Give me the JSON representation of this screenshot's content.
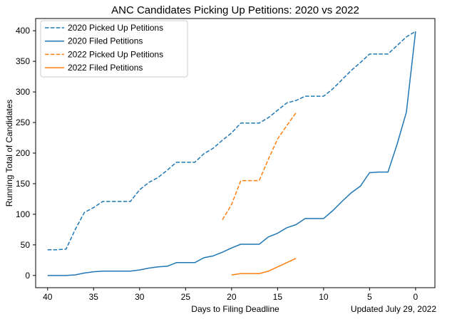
{
  "chart_data": {
    "type": "line",
    "title": "ANC Candidates Picking Up Petitions: 2020 vs 2022",
    "xlabel": "Days to Filing Deadline",
    "ylabel": "Running Total of Candidates",
    "footnote": "Updated July 29, 2022",
    "xlim": [
      41.3,
      -2.1
    ],
    "ylim": [
      -20,
      420
    ],
    "x_reversed": true,
    "x_ticks": [
      40,
      35,
      30,
      25,
      20,
      15,
      10,
      5,
      0
    ],
    "y_ticks": [
      0,
      50,
      100,
      150,
      200,
      250,
      300,
      350,
      400
    ],
    "grid": false,
    "legend": "top-left",
    "series": [
      {
        "name": "2020 Picked Up Petitions",
        "color": "#1f77b4",
        "dash": "dashed",
        "x": [
          40,
          39,
          38,
          37,
          36,
          35,
          34,
          33,
          32,
          31,
          30,
          29,
          28,
          27,
          26,
          25,
          24,
          23,
          22,
          21,
          20,
          19,
          18,
          17,
          16,
          15,
          14,
          13,
          12,
          11,
          10,
          9,
          8,
          7,
          6,
          5,
          4,
          3,
          2,
          1,
          0
        ],
        "y": [
          42,
          42,
          43,
          75,
          103,
          111,
          121,
          121,
          121,
          121,
          140,
          152,
          160,
          172,
          185,
          185,
          185,
          199,
          208,
          221,
          233,
          249,
          249,
          249,
          258,
          270,
          282,
          286,
          293,
          293,
          293,
          305,
          320,
          335,
          348,
          362,
          362,
          362,
          376,
          390,
          399
        ]
      },
      {
        "name": "2020 Filed Petitions",
        "color": "#1f77b4",
        "dash": "solid",
        "x": [
          40,
          39,
          38,
          37,
          36,
          35,
          34,
          33,
          32,
          31,
          30,
          29,
          28,
          27,
          26,
          25,
          24,
          23,
          22,
          21,
          20,
          19,
          18,
          17,
          16,
          15,
          14,
          13,
          12,
          11,
          10,
          9,
          8,
          7,
          6,
          5,
          4,
          3,
          2,
          1,
          0
        ],
        "y": [
          0,
          0,
          0,
          1,
          4,
          6,
          7,
          7,
          7,
          7,
          9,
          12,
          14,
          15,
          21,
          21,
          21,
          29,
          32,
          38,
          45,
          51,
          51,
          51,
          63,
          69,
          78,
          83,
          93,
          93,
          93,
          106,
          121,
          135,
          146,
          168,
          169,
          169,
          215,
          267,
          399
        ]
      },
      {
        "name": "2022 Picked Up Petitions",
        "color": "#ff7f0e",
        "dash": "dashed",
        "x": [
          21,
          20,
          19,
          18,
          17,
          16,
          15,
          14,
          13
        ],
        "y": [
          91,
          116,
          155,
          155,
          155,
          190,
          223,
          245,
          266
        ]
      },
      {
        "name": "2022 Filed Petitions",
        "color": "#ff7f0e",
        "dash": "solid",
        "x": [
          20,
          19,
          18,
          17,
          16,
          15,
          14,
          13
        ],
        "y": [
          1,
          3,
          3,
          3,
          7,
          14,
          21,
          28
        ]
      }
    ]
  }
}
